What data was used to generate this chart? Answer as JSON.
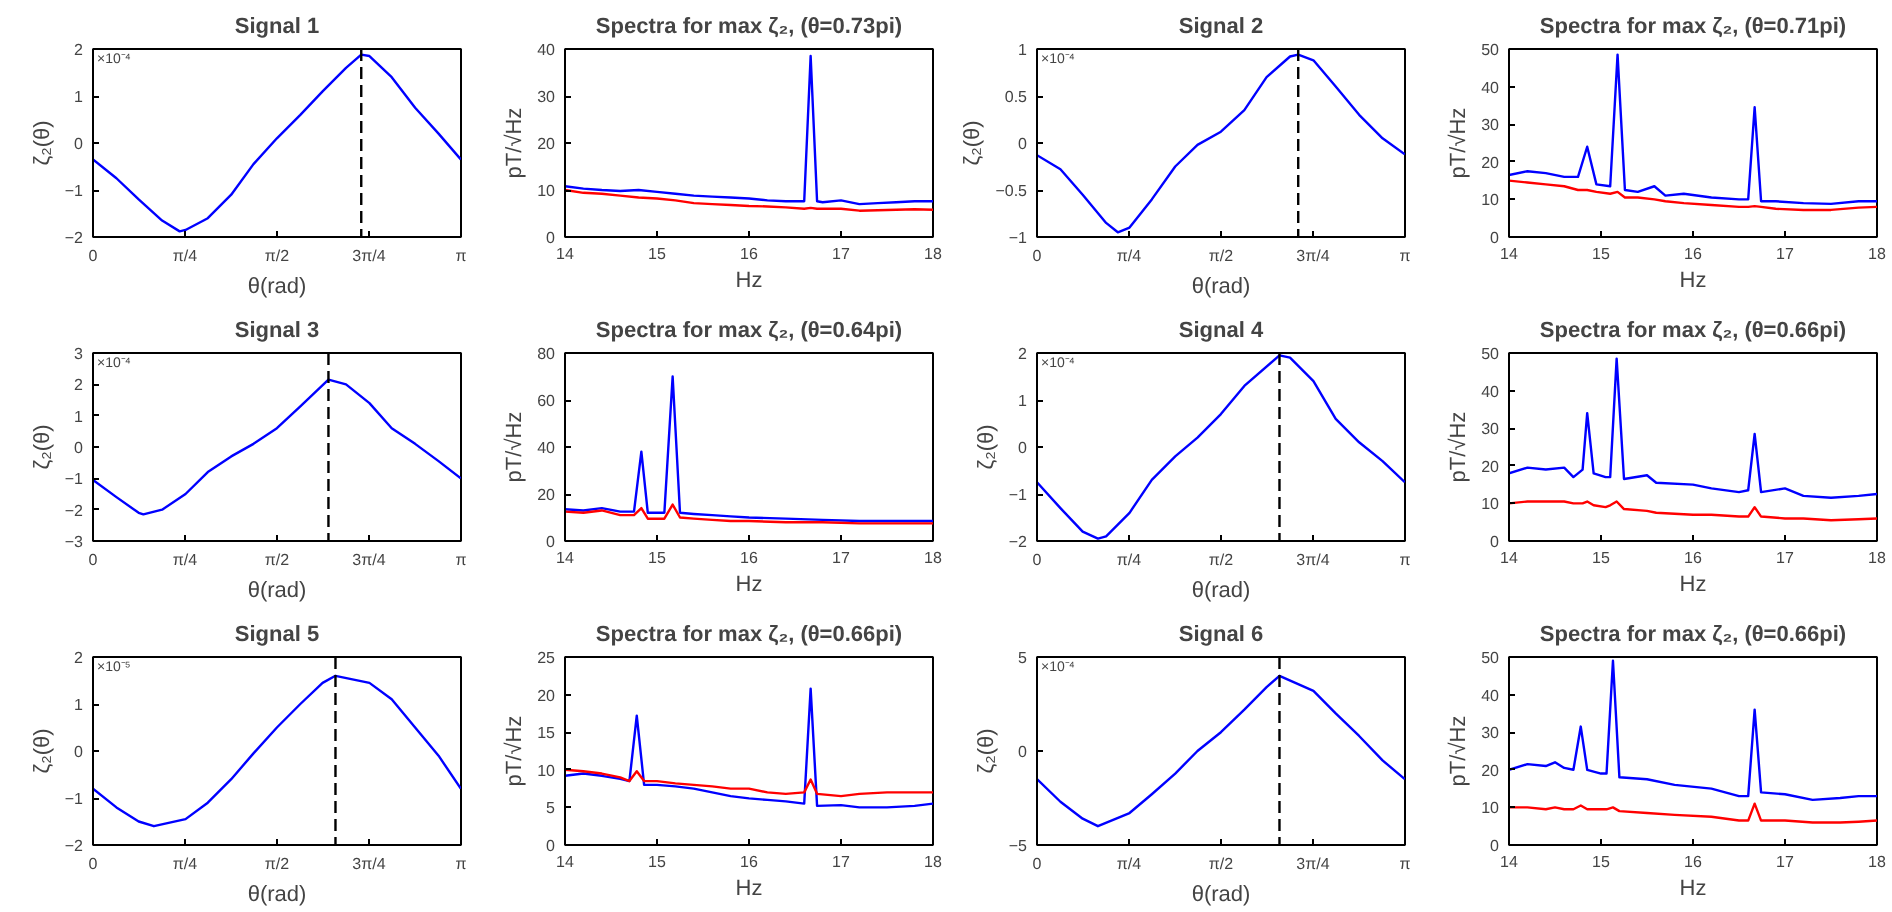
{
  "chart_data": [
    {
      "type": "line",
      "title": "Signal 1",
      "xlabel": "θ(rad)",
      "ylabel": "ζ₂(θ)",
      "annotations": [
        "×10⁻⁴"
      ],
      "xlim": [
        0,
        3.1416
      ],
      "xticks": [
        0,
        {
          "value": 0.7854,
          "label": "π/4"
        },
        {
          "value": 1.5708,
          "label": "π/2"
        },
        {
          "value": 2.3562,
          "label": "3π/4"
        },
        {
          "value": 3.1416,
          "label": "π"
        }
      ],
      "ylim": [
        -2,
        2
      ],
      "yticks": [
        -2,
        -1,
        0,
        1,
        2
      ],
      "ref_lines": [
        {
          "axis": "x",
          "value": 2.29,
          "color": "#000000",
          "line_style": "dashed"
        }
      ],
      "x": [
        0,
        0.2,
        0.39,
        0.59,
        0.74,
        0.79,
        0.98,
        1.18,
        1.37,
        1.57,
        1.77,
        1.96,
        2.16,
        2.29,
        2.36,
        2.55,
        2.75,
        2.95,
        3.14
      ],
      "series": [
        {
          "color": "#0000ff",
          "values": [
            -0.35,
            -0.75,
            -1.2,
            -1.65,
            -1.88,
            -1.85,
            -1.6,
            -1.1,
            -0.45,
            0.1,
            0.6,
            1.1,
            1.6,
            1.88,
            1.85,
            1.4,
            0.75,
            0.2,
            -0.35
          ]
        }
      ]
    },
    {
      "type": "line",
      "title": "Spectra for max ζ₂, (θ=0.73pi)",
      "xlabel": "Hz",
      "ylabel": "pT/√Hz",
      "xlim": [
        14,
        18
      ],
      "xticks": [
        14,
        15,
        16,
        17,
        18
      ],
      "ylim": [
        0,
        40
      ],
      "yticks": [
        0,
        10,
        20,
        30,
        40
      ],
      "x": [
        14,
        14.2,
        14.4,
        14.6,
        14.8,
        15,
        15.2,
        15.4,
        15.6,
        15.8,
        16,
        16.2,
        16.4,
        16.6,
        16.67,
        16.74,
        16.8,
        17,
        17.2,
        17.4,
        17.6,
        17.8,
        18
      ],
      "series": [
        {
          "color": "#0000ff",
          "values": [
            10.8,
            10.3,
            10,
            9.8,
            10,
            9.6,
            9.2,
            8.8,
            8.6,
            8.4,
            8.2,
            7.8,
            7.6,
            7.6,
            38.5,
            7.6,
            7.4,
            7.8,
            7,
            7.2,
            7.4,
            7.6,
            7.6
          ]
        },
        {
          "color": "#ff0000",
          "values": [
            10,
            9.4,
            9.2,
            8.8,
            8.4,
            8.2,
            7.8,
            7.2,
            7,
            6.8,
            6.6,
            6.5,
            6.3,
            6,
            6.2,
            6,
            6,
            6,
            5.6,
            5.7,
            5.8,
            5.9,
            5.8
          ]
        }
      ]
    },
    {
      "type": "line",
      "title": "Signal 2",
      "xlabel": "θ(rad)",
      "ylabel": "ζ₂(θ)",
      "annotations": [
        "×10⁻⁴"
      ],
      "xlim": [
        0,
        3.1416
      ],
      "xticks": [
        0,
        {
          "value": 0.7854,
          "label": "π/4"
        },
        {
          "value": 1.5708,
          "label": "π/2"
        },
        {
          "value": 2.3562,
          "label": "3π/4"
        },
        {
          "value": 3.1416,
          "label": "π"
        }
      ],
      "ylim": [
        -1,
        1
      ],
      "yticks": [
        -1,
        -0.5,
        0,
        0.5,
        1
      ],
      "ref_lines": [
        {
          "axis": "x",
          "value": 2.23,
          "color": "#000000",
          "line_style": "dashed"
        }
      ],
      "x": [
        0,
        0.2,
        0.39,
        0.59,
        0.69,
        0.79,
        0.98,
        1.18,
        1.37,
        1.57,
        1.77,
        1.96,
        2.16,
        2.23,
        2.36,
        2.55,
        2.75,
        2.95,
        3.14
      ],
      "series": [
        {
          "color": "#0000ff",
          "values": [
            -0.13,
            -0.28,
            -0.55,
            -0.85,
            -0.95,
            -0.9,
            -0.6,
            -0.25,
            -0.02,
            0.12,
            0.35,
            0.7,
            0.92,
            0.94,
            0.88,
            0.6,
            0.3,
            0.05,
            -0.12
          ]
        }
      ]
    },
    {
      "type": "line",
      "title": "Spectra for max ζ₂, (θ=0.71pi)",
      "xlabel": "Hz",
      "ylabel": "pT/√Hz",
      "xlim": [
        14,
        18
      ],
      "xticks": [
        14,
        15,
        16,
        17,
        18
      ],
      "ylim": [
        0,
        50
      ],
      "yticks": [
        0,
        10,
        20,
        30,
        40,
        50
      ],
      "x": [
        14,
        14.2,
        14.4,
        14.6,
        14.75,
        14.85,
        14.95,
        15.1,
        15.18,
        15.26,
        15.4,
        15.58,
        15.7,
        15.9,
        16.2,
        16.5,
        16.6,
        16.67,
        16.74,
        16.9,
        17.2,
        17.5,
        17.8,
        18
      ],
      "series": [
        {
          "color": "#0000ff",
          "values": [
            16.5,
            17.5,
            17,
            16,
            16,
            24,
            14,
            13.5,
            48.5,
            12.5,
            12,
            13.5,
            11,
            11.5,
            10.5,
            10,
            10,
            34.5,
            9.5,
            9.5,
            9,
            8.8,
            9.5,
            9.5
          ]
        },
        {
          "color": "#ff0000",
          "values": [
            15,
            14.5,
            14,
            13.5,
            12.5,
            12.5,
            12,
            11.5,
            12,
            10.5,
            10.5,
            10,
            9.5,
            9,
            8.5,
            8,
            8,
            8.2,
            8,
            7.5,
            7.2,
            7.2,
            7.8,
            8
          ]
        }
      ]
    },
    {
      "type": "line",
      "title": "Signal 3",
      "xlabel": "θ(rad)",
      "ylabel": "ζ₂(θ)",
      "annotations": [
        "×10⁻⁴"
      ],
      "xlim": [
        0,
        3.1416
      ],
      "xticks": [
        0,
        {
          "value": 0.7854,
          "label": "π/4"
        },
        {
          "value": 1.5708,
          "label": "π/2"
        },
        {
          "value": 2.3562,
          "label": "3π/4"
        },
        {
          "value": 3.1416,
          "label": "π"
        }
      ],
      "ylim": [
        -3,
        3
      ],
      "yticks": [
        -3,
        -2,
        -1,
        0,
        1,
        2,
        3
      ],
      "ref_lines": [
        {
          "axis": "x",
          "value": 2.01,
          "color": "#000000",
          "line_style": "dashed"
        }
      ],
      "x": [
        0,
        0.2,
        0.39,
        0.43,
        0.59,
        0.79,
        0.98,
        1.18,
        1.37,
        1.57,
        1.77,
        2.01,
        2.16,
        2.36,
        2.55,
        2.75,
        2.95,
        3.14
      ],
      "series": [
        {
          "color": "#0000ff",
          "values": [
            -1.05,
            -1.6,
            -2.1,
            -2.15,
            -2.0,
            -1.5,
            -0.8,
            -0.3,
            0.1,
            0.6,
            1.3,
            2.15,
            2.0,
            1.4,
            0.6,
            0.1,
            -0.45,
            -1.0
          ]
        }
      ]
    },
    {
      "type": "line",
      "title": "Spectra for max ζ₂, (θ=0.64pi)",
      "xlabel": "Hz",
      "ylabel": "pT/√Hz",
      "xlim": [
        14,
        18
      ],
      "xticks": [
        14,
        15,
        16,
        17,
        18
      ],
      "ylim": [
        0,
        80
      ],
      "yticks": [
        0,
        20,
        40,
        60,
        80
      ],
      "x": [
        14,
        14.2,
        14.4,
        14.6,
        14.75,
        14.83,
        14.9,
        15.08,
        15.17,
        15.25,
        15.4,
        15.6,
        15.8,
        16,
        16.4,
        16.8,
        17.2,
        17.6,
        18
      ],
      "series": [
        {
          "color": "#0000ff",
          "values": [
            13.5,
            13,
            14,
            12.5,
            12.5,
            38,
            12,
            12,
            70,
            12,
            11.5,
            11,
            10.5,
            10,
            9.5,
            9,
            8.5,
            8.5,
            8.5
          ]
        },
        {
          "color": "#ff0000",
          "values": [
            12.5,
            12,
            13,
            11,
            11,
            14,
            9.5,
            9.5,
            15.5,
            10,
            9.5,
            9,
            8.5,
            8.5,
            8,
            8,
            7.5,
            7.5,
            7.5
          ]
        }
      ]
    },
    {
      "type": "line",
      "title": "Signal 4",
      "xlabel": "θ(rad)",
      "ylabel": "ζ₂(θ)",
      "annotations": [
        "×10⁻⁴"
      ],
      "xlim": [
        0,
        3.1416
      ],
      "xticks": [
        0,
        {
          "value": 0.7854,
          "label": "π/4"
        },
        {
          "value": 1.5708,
          "label": "π/2"
        },
        {
          "value": 2.3562,
          "label": "3π/4"
        },
        {
          "value": 3.1416,
          "label": "π"
        }
      ],
      "ylim": [
        -2,
        2
      ],
      "yticks": [
        -2,
        -1,
        0,
        1,
        2
      ],
      "ref_lines": [
        {
          "axis": "x",
          "value": 2.07,
          "color": "#000000",
          "line_style": "dashed"
        }
      ],
      "x": [
        0,
        0.2,
        0.39,
        0.52,
        0.59,
        0.79,
        0.98,
        1.18,
        1.37,
        1.57,
        1.77,
        2.07,
        2.16,
        2.36,
        2.55,
        2.75,
        2.95,
        3.14
      ],
      "series": [
        {
          "color": "#0000ff",
          "values": [
            -0.75,
            -1.3,
            -1.8,
            -1.95,
            -1.9,
            -1.4,
            -0.7,
            -0.2,
            0.2,
            0.7,
            1.3,
            1.95,
            1.9,
            1.4,
            0.6,
            0.1,
            -0.3,
            -0.75
          ]
        }
      ]
    },
    {
      "type": "line",
      "title": "Spectra for max ζ₂, (θ=0.66pi)",
      "xlabel": "Hz",
      "ylabel": "pT/√Hz",
      "xlim": [
        14,
        18
      ],
      "xticks": [
        14,
        15,
        16,
        17,
        18
      ],
      "ylim": [
        0,
        50
      ],
      "yticks": [
        0,
        10,
        20,
        30,
        40,
        50
      ],
      "x": [
        14,
        14.2,
        14.4,
        14.6,
        14.7,
        14.8,
        14.85,
        14.92,
        15.05,
        15.1,
        15.17,
        15.25,
        15.5,
        15.6,
        16,
        16.2,
        16.5,
        16.6,
        16.67,
        16.74,
        17,
        17.2,
        17.5,
        17.8,
        18
      ],
      "series": [
        {
          "color": "#0000ff",
          "values": [
            18,
            19.5,
            19,
            19.5,
            17,
            19,
            34,
            18,
            17,
            17,
            48.5,
            16.5,
            17.5,
            15.5,
            15,
            14,
            13,
            13.5,
            28.5,
            13,
            14,
            12,
            11.5,
            12,
            12.5
          ]
        },
        {
          "color": "#ff0000",
          "values": [
            10,
            10.5,
            10.5,
            10.5,
            10,
            10,
            10.5,
            9.5,
            9,
            9.5,
            10.5,
            8.5,
            8,
            7.5,
            7,
            7,
            6.5,
            6.5,
            9,
            6.5,
            6,
            6,
            5.5,
            5.8,
            6
          ]
        }
      ]
    },
    {
      "type": "line",
      "title": "Signal 5",
      "xlabel": "θ(rad)",
      "ylabel": "ζ₂(θ)",
      "annotations": [
        "×10⁻⁵"
      ],
      "xlim": [
        0,
        3.1416
      ],
      "xticks": [
        0,
        {
          "value": 0.7854,
          "label": "π/4"
        },
        {
          "value": 1.5708,
          "label": "π/2"
        },
        {
          "value": 2.3562,
          "label": "3π/4"
        },
        {
          "value": 3.1416,
          "label": "π"
        }
      ],
      "ylim": [
        -2,
        2
      ],
      "yticks": [
        -2,
        -1,
        0,
        1,
        2
      ],
      "ref_lines": [
        {
          "axis": "x",
          "value": 2.07,
          "color": "#000000",
          "line_style": "dashed"
        }
      ],
      "x": [
        0,
        0.2,
        0.39,
        0.52,
        0.79,
        0.98,
        1.18,
        1.37,
        1.57,
        1.77,
        1.96,
        2.07,
        2.36,
        2.55,
        2.75,
        2.95,
        3.14
      ],
      "series": [
        {
          "color": "#0000ff",
          "values": [
            -0.8,
            -1.2,
            -1.5,
            -1.6,
            -1.45,
            -1.1,
            -0.6,
            -0.05,
            0.5,
            1.0,
            1.45,
            1.6,
            1.45,
            1.1,
            0.5,
            -0.1,
            -0.8
          ]
        }
      ]
    },
    {
      "type": "line",
      "title": "Spectra for max ζ₂, (θ=0.66pi)",
      "xlabel": "Hz",
      "ylabel": "pT/√Hz",
      "xlim": [
        14,
        18
      ],
      "xticks": [
        14,
        15,
        16,
        17,
        18
      ],
      "ylim": [
        0,
        25
      ],
      "yticks": [
        0,
        5,
        10,
        15,
        20,
        25
      ],
      "x": [
        14,
        14.2,
        14.4,
        14.6,
        14.7,
        14.78,
        14.86,
        15,
        15.2,
        15.4,
        15.6,
        15.8,
        16,
        16.2,
        16.4,
        16.6,
        16.67,
        16.74,
        17,
        17.2,
        17.5,
        17.8,
        18
      ],
      "series": [
        {
          "color": "#0000ff",
          "values": [
            9.2,
            9.5,
            9.2,
            8.8,
            8.5,
            17.2,
            8,
            8,
            7.8,
            7.5,
            7,
            6.5,
            6.2,
            6,
            5.8,
            5.5,
            20.8,
            5.2,
            5.3,
            5,
            5,
            5.2,
            5.5
          ]
        },
        {
          "color": "#ff0000",
          "values": [
            10,
            9.8,
            9.5,
            9,
            8.5,
            9.8,
            8.5,
            8.5,
            8.2,
            8,
            7.8,
            7.5,
            7.5,
            7,
            6.8,
            7,
            8.7,
            6.8,
            6.5,
            6.8,
            7,
            7,
            7
          ]
        }
      ]
    },
    {
      "type": "line",
      "title": "Signal 6",
      "xlabel": "θ(rad)",
      "ylabel": "ζ₂(θ)",
      "annotations": [
        "×10⁻⁴"
      ],
      "xlim": [
        0,
        3.1416
      ],
      "xticks": [
        0,
        {
          "value": 0.7854,
          "label": "π/4"
        },
        {
          "value": 1.5708,
          "label": "π/2"
        },
        {
          "value": 2.3562,
          "label": "3π/4"
        },
        {
          "value": 3.1416,
          "label": "π"
        }
      ],
      "ylim": [
        -5,
        5
      ],
      "yticks": [
        -5,
        0,
        5
      ],
      "ref_lines": [
        {
          "axis": "x",
          "value": 2.07,
          "color": "#000000",
          "line_style": "dashed"
        }
      ],
      "x": [
        0,
        0.2,
        0.39,
        0.52,
        0.79,
        0.98,
        1.18,
        1.37,
        1.57,
        1.77,
        1.96,
        2.07,
        2.36,
        2.55,
        2.75,
        2.95,
        3.14
      ],
      "series": [
        {
          "color": "#0000ff",
          "values": [
            -1.5,
            -2.7,
            -3.6,
            -4.0,
            -3.3,
            -2.3,
            -1.2,
            0.0,
            1.0,
            2.2,
            3.4,
            4.0,
            3.2,
            2.0,
            0.8,
            -0.5,
            -1.5
          ]
        }
      ]
    },
    {
      "type": "line",
      "title": "Spectra for max ζ₂, (θ=0.66pi)",
      "xlabel": "Hz",
      "ylabel": "pT/√Hz",
      "xlim": [
        14,
        18
      ],
      "xticks": [
        14,
        15,
        16,
        17,
        18
      ],
      "ylim": [
        0,
        50
      ],
      "yticks": [
        0,
        10,
        20,
        30,
        40,
        50
      ],
      "x": [
        14,
        14.2,
        14.4,
        14.5,
        14.6,
        14.7,
        14.78,
        14.85,
        15,
        15.06,
        15.13,
        15.2,
        15.5,
        15.8,
        16.2,
        16.5,
        16.6,
        16.67,
        16.74,
        17,
        17.3,
        17.6,
        17.8,
        18
      ],
      "series": [
        {
          "color": "#0000ff",
          "values": [
            20,
            21.5,
            21,
            22,
            20.5,
            20,
            31.5,
            20,
            19,
            19,
            49,
            18,
            17.5,
            16,
            15,
            13,
            13,
            36,
            14,
            13.5,
            12,
            12.5,
            13,
            13
          ]
        },
        {
          "color": "#ff0000",
          "values": [
            10,
            10,
            9.5,
            10,
            9.5,
            9.5,
            10.5,
            9.5,
            9.5,
            9.5,
            10,
            9,
            8.5,
            8,
            7.5,
            6.5,
            6.5,
            11,
            6.5,
            6.5,
            6,
            6,
            6.2,
            6.5
          ]
        }
      ]
    }
  ]
}
